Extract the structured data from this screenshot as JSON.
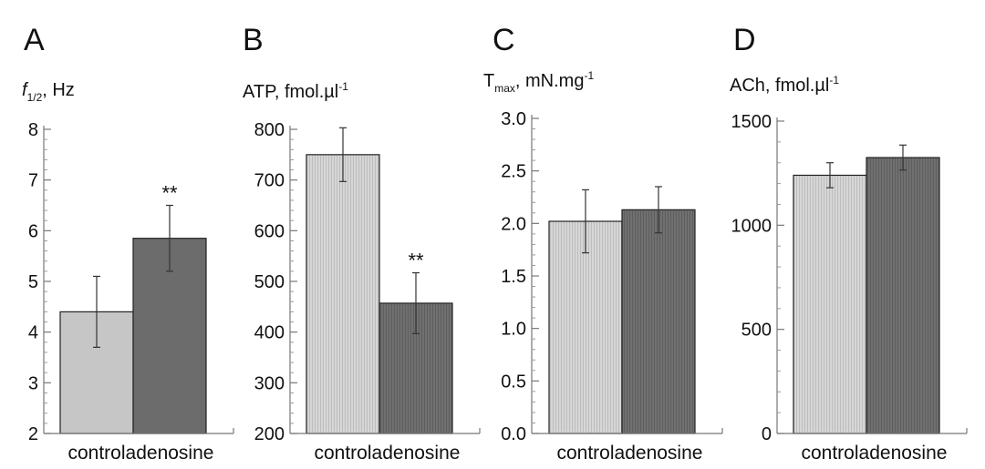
{
  "chart_data": [
    {
      "type": "bar",
      "panel_label": "A",
      "ylabel_main": "f",
      "ylabel_sub": "1/2",
      "ylabel_tail": ", Hz",
      "categories": [
        "control",
        "adenosine"
      ],
      "values": [
        4.4,
        5.85
      ],
      "errors": [
        0.7,
        0.65
      ],
      "significance": [
        "",
        "**"
      ],
      "ylim": [
        2,
        8
      ],
      "yticks": [
        2,
        3,
        4,
        5,
        6,
        7,
        8
      ],
      "ytick_labels": [
        "2",
        "3",
        "4",
        "5",
        "6",
        "7",
        "8"
      ],
      "bar_colors": [
        "#c6c6c6",
        "#6c6c6c"
      ]
    },
    {
      "type": "bar",
      "panel_label": "B",
      "ylabel_main": "ATP, fmol.µl",
      "ylabel_sup": "-1",
      "categories": [
        "control",
        "adenosine"
      ],
      "values": [
        750,
        457
      ],
      "errors": [
        53,
        60
      ],
      "significance": [
        "",
        "**"
      ],
      "ylim": [
        200,
        800
      ],
      "yticks": [
        200,
        300,
        400,
        500,
        600,
        700,
        800
      ],
      "ytick_labels": [
        "200",
        "300",
        "400",
        "500",
        "600",
        "700",
        "800"
      ],
      "bar_colors": [
        "#cfcfcf",
        "#6c6c6c"
      ]
    },
    {
      "type": "bar",
      "panel_label": "C",
      "ylabel_main": "T",
      "ylabel_sub": "max",
      "ylabel_tail": ", mN.mg",
      "ylabel_sup": "-1",
      "categories": [
        "control",
        "adenosine"
      ],
      "values": [
        2.02,
        2.13
      ],
      "errors": [
        0.3,
        0.22
      ],
      "significance": [
        "",
        ""
      ],
      "ylim": [
        0,
        3
      ],
      "yticks": [
        0,
        0.5,
        1,
        1.5,
        2,
        2.5,
        3
      ],
      "ytick_labels": [
        "0.0",
        "0.5",
        "1.0",
        "1.5",
        "2.0",
        "2.5",
        "3.0"
      ],
      "bar_colors": [
        "#cfcfcf",
        "#6c6c6c"
      ]
    },
    {
      "type": "bar",
      "panel_label": "D",
      "ylabel_main": "ACh, fmol.µl",
      "ylabel_sup": "-1",
      "categories": [
        "control",
        "adenosine"
      ],
      "values": [
        1240,
        1325
      ],
      "errors": [
        60,
        60
      ],
      "significance": [
        "",
        ""
      ],
      "ylim": [
        0,
        1500
      ],
      "yticks": [
        0,
        500,
        1000,
        1500
      ],
      "ytick_labels": [
        "0",
        "500",
        "1000",
        "1500"
      ],
      "bar_colors": [
        "#cfcfcf",
        "#6c6c6c"
      ]
    }
  ]
}
